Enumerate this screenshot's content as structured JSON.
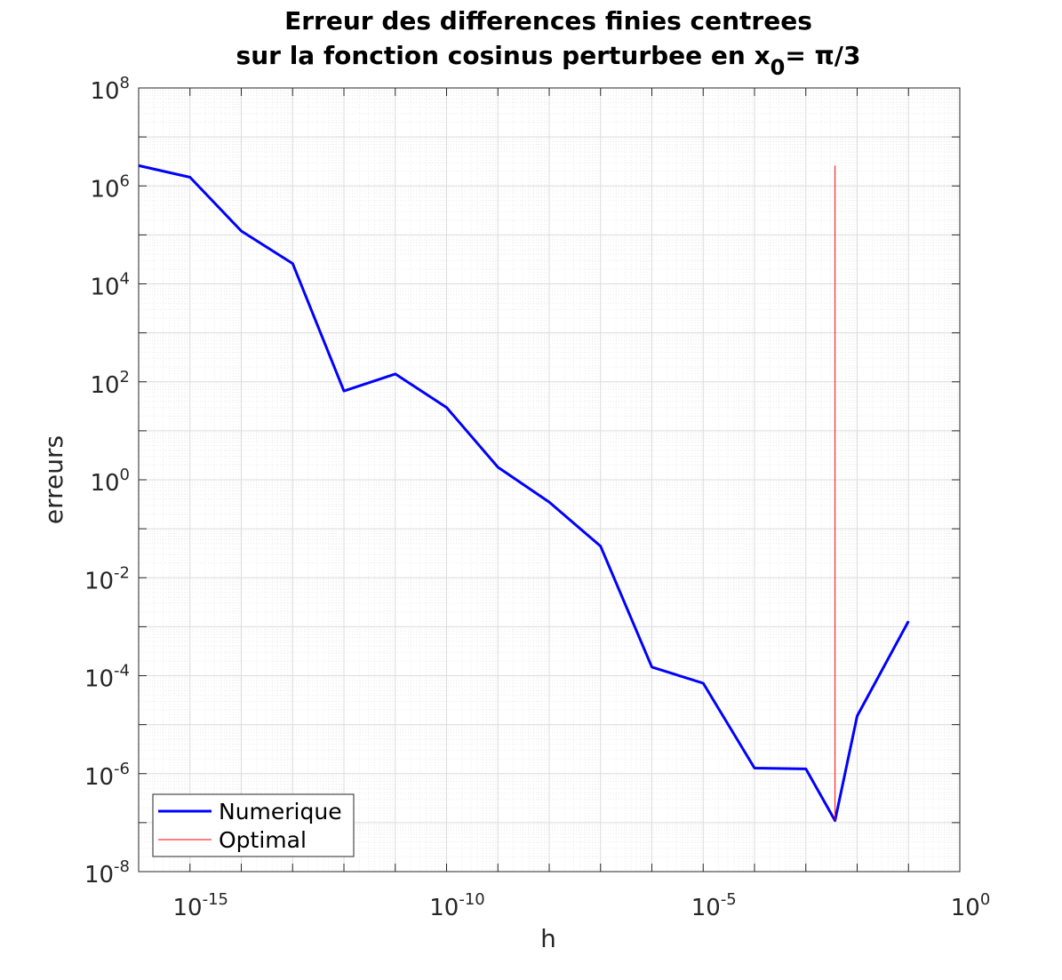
{
  "chart_data": {
    "type": "line",
    "title": [
      "Erreur des differences finies centrees",
      "sur la fonction cosinus perturbee en x"
    ],
    "title_subscript": "0",
    "title_suffix": "= π/3",
    "xlabel": "h",
    "ylabel": "erreurs",
    "x_scale": "log",
    "y_scale": "log",
    "xlim": [
      1e-16,
      1
    ],
    "ylim": [
      1e-08,
      100000000.0
    ],
    "x_ticks": [
      {
        "value": 1e-15,
        "base": "10",
        "exp": "-15"
      },
      {
        "value": 1e-10,
        "base": "10",
        "exp": "-10"
      },
      {
        "value": 1e-05,
        "base": "10",
        "exp": "-5"
      },
      {
        "value": 1,
        "base": "10",
        "exp": "0"
      }
    ],
    "y_ticks": [
      {
        "value": 1e-08,
        "base": "10",
        "exp": "-8"
      },
      {
        "value": 1e-06,
        "base": "10",
        "exp": "-6"
      },
      {
        "value": 0.0001,
        "base": "10",
        "exp": "-4"
      },
      {
        "value": 0.01,
        "base": "10",
        "exp": "-2"
      },
      {
        "value": 1,
        "base": "10",
        "exp": "0"
      },
      {
        "value": 100.0,
        "base": "10",
        "exp": "2"
      },
      {
        "value": 10000.0,
        "base": "10",
        "exp": "4"
      },
      {
        "value": 1000000.0,
        "base": "10",
        "exp": "6"
      },
      {
        "value": 100000000.0,
        "base": "10",
        "exp": "8"
      }
    ],
    "grid": true,
    "minor_grid": true,
    "legend_position": "bottom-left",
    "series": [
      {
        "name": "Numerique",
        "color": "#0000ff",
        "x": [
          1e-16,
          1e-15,
          1e-14,
          1e-13,
          1e-12,
          1e-11,
          1e-10,
          1e-09,
          1e-08,
          1e-07,
          1e-06,
          1e-05,
          0.0001,
          0.001,
          0.0037,
          0.01,
          0.1
        ],
        "y": [
          2600000.0,
          1500000.0,
          120000.0,
          26000.0,
          65,
          145,
          30,
          1.8,
          0.35,
          0.044,
          0.00015,
          7e-05,
          1.3e-06,
          1.25e-06,
          1.1e-07,
          1.5e-05,
          0.0013
        ]
      },
      {
        "name": "Optimal",
        "color": "#ff0000",
        "x": [
          0.0037,
          0.0037
        ],
        "y": [
          1.1e-07,
          2600000.0
        ]
      }
    ]
  }
}
